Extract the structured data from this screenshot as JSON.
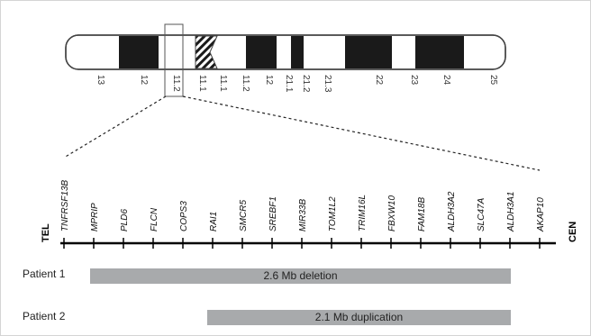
{
  "chromosome": {
    "band_labels": [
      "13",
      "12",
      "11.2",
      "11.1",
      "11.1",
      "11.2",
      "12",
      "21.1",
      "21.2",
      "21.3",
      "22",
      "23",
      "24",
      "25"
    ],
    "highlight_band": "11.2"
  },
  "ends": {
    "left": "TEL",
    "right": "CEN"
  },
  "genes": [
    "TNFRSF13B",
    "MPRIP",
    "PLD6",
    "FLCN",
    "COPS3",
    "RAI1",
    "SMCR5",
    "SREBF1",
    "MIR33B",
    "TOM1L2",
    "TRIM16L",
    "FBXW10",
    "FAM18B",
    "ALDH3A2",
    "SLC47A",
    "ALDH3A1",
    "AKAP10"
  ],
  "patients": [
    {
      "label": "Patient 1",
      "event": "2.6 Mb deletion",
      "start_gene": "MPRIP",
      "end_gene": "ALDH3A1"
    },
    {
      "label": "Patient 2",
      "event": "2.1 Mb duplication",
      "start_gene": "RAI1",
      "end_gene": "ALDH3A1"
    }
  ],
  "colors": {
    "band_dark": "#1a1a1a",
    "bar": "#a8aaac",
    "outline": "#444444"
  }
}
